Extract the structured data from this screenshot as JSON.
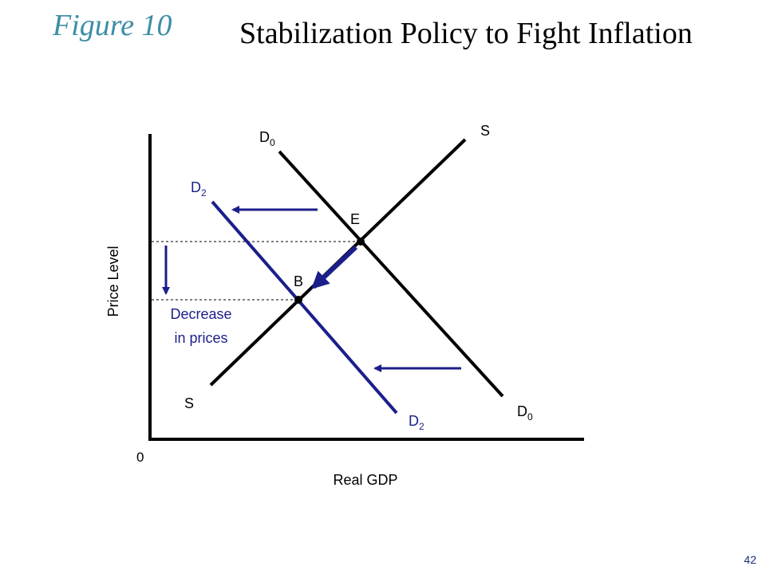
{
  "figure_label": "Figure 10",
  "title": "Stabilization Policy to Fight Inflation",
  "page_number": "42",
  "axes": {
    "x_label": "Real GDP",
    "y_label": "Price Level",
    "origin": "0"
  },
  "curves": {
    "supply": {
      "label": "S"
    },
    "demand_initial": {
      "label": "D",
      "subscript": "0"
    },
    "demand_new": {
      "label": "D",
      "subscript": "2"
    }
  },
  "points": {
    "E": "E",
    "B": "B"
  },
  "annotation": {
    "line1": "Decrease",
    "line2": "in prices"
  },
  "colors": {
    "figure_label": "#3c8ea6",
    "policy_blue": "#1b1f8a",
    "curve_black": "#000000"
  }
}
